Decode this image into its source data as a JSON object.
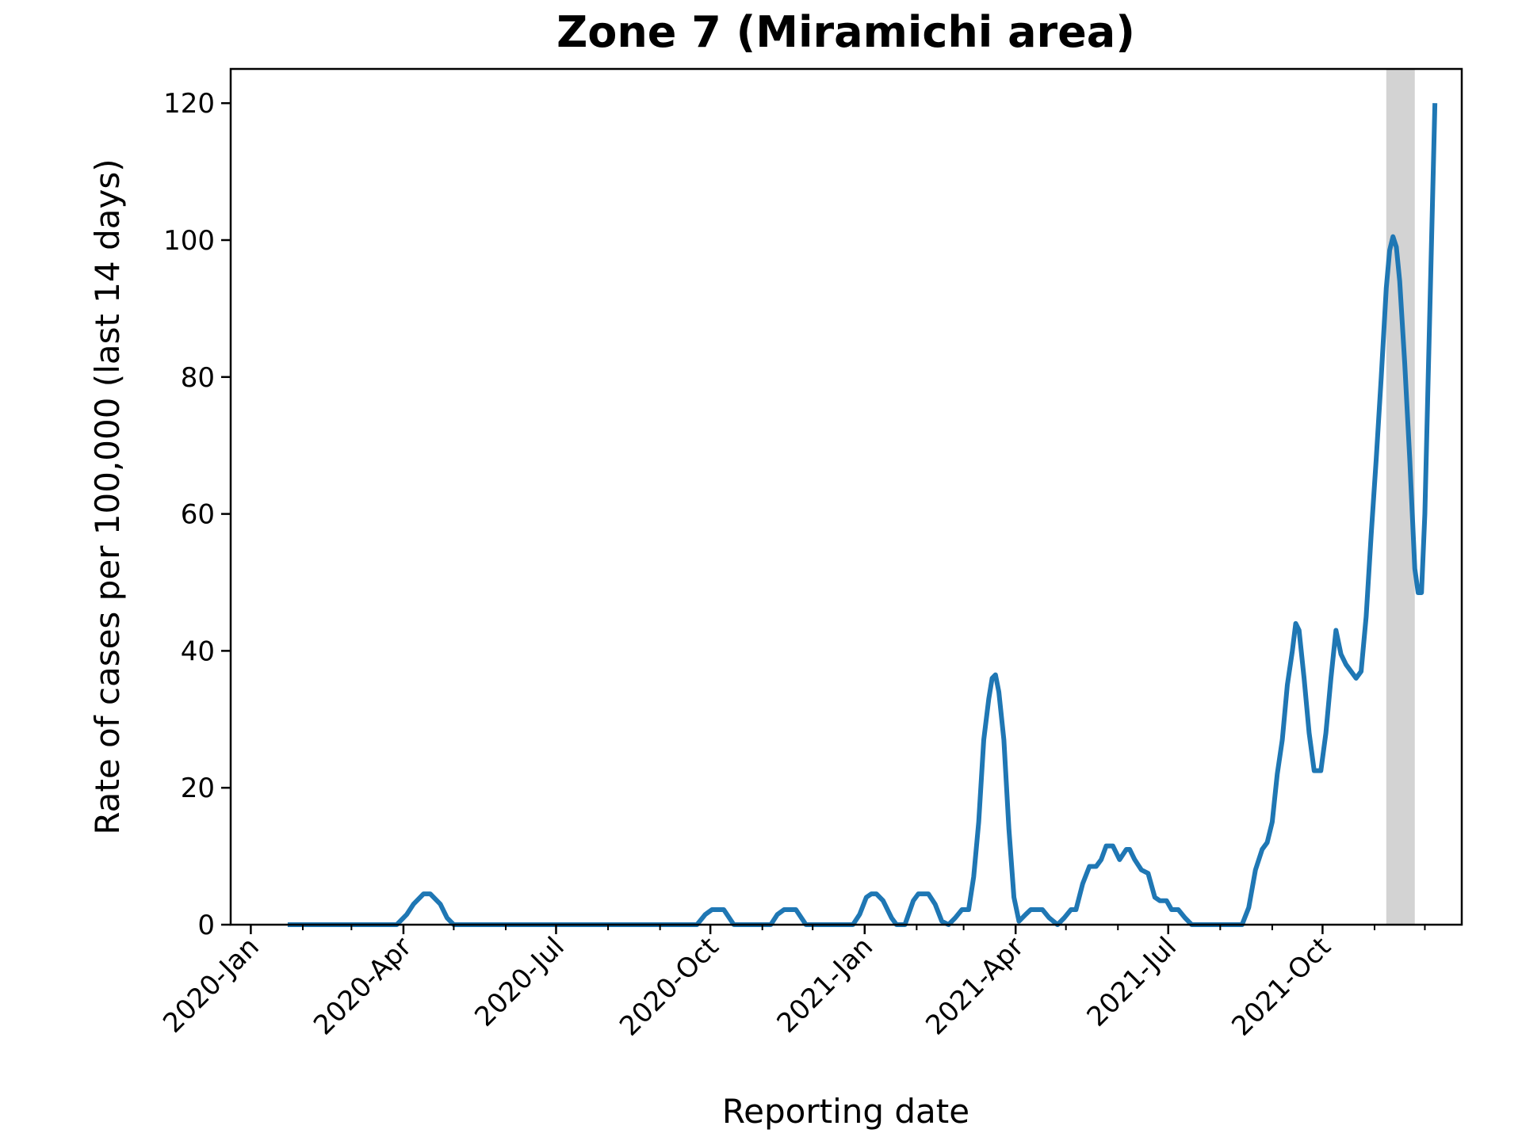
{
  "chart_data": {
    "type": "line",
    "title": "Zone 7 (Miramichi area)",
    "xlabel": "Reporting date",
    "ylabel": "Rate of cases per 100,000 (last 14 days)",
    "x_axis": {
      "type": "date",
      "range": [
        "2019-12-20",
        "2021-12-23"
      ],
      "ticks": [
        {
          "date": "2020-01-01",
          "label": "2020-Jan"
        },
        {
          "date": "2020-04-01",
          "label": "2020-Apr"
        },
        {
          "date": "2020-07-01",
          "label": "2020-Jul"
        },
        {
          "date": "2020-10-01",
          "label": "2020-Oct"
        },
        {
          "date": "2021-01-01",
          "label": "2021-Jan"
        },
        {
          "date": "2021-04-01",
          "label": "2021-Apr"
        },
        {
          "date": "2021-07-01",
          "label": "2021-Jul"
        },
        {
          "date": "2021-10-01",
          "label": "2021-Oct"
        }
      ],
      "minor_ticks": [
        "2020-02-01",
        "2020-03-01",
        "2020-05-01",
        "2020-06-01",
        "2020-08-01",
        "2020-09-01",
        "2020-11-01",
        "2020-12-01",
        "2021-02-01",
        "2021-03-01",
        "2021-05-01",
        "2021-06-01",
        "2021-08-01",
        "2021-09-01",
        "2021-11-01",
        "2021-12-01"
      ]
    },
    "y_axis": {
      "range": [
        0,
        125
      ],
      "ticks": [
        0,
        20,
        40,
        60,
        80,
        100,
        120
      ]
    },
    "grid": false,
    "highlight_band": {
      "from": "2021-11-08",
      "to": "2021-11-25",
      "color": "#d3d3d3"
    },
    "series": [
      {
        "color": "#1f77b4",
        "points": [
          [
            "2020-01-23",
            0
          ],
          [
            "2020-03-28",
            0
          ],
          [
            "2020-04-03",
            1.5
          ],
          [
            "2020-04-07",
            3
          ],
          [
            "2020-04-13",
            4.5
          ],
          [
            "2020-04-17",
            4.5
          ],
          [
            "2020-04-23",
            3
          ],
          [
            "2020-04-27",
            1
          ],
          [
            "2020-05-01",
            0
          ],
          [
            "2020-09-23",
            0
          ],
          [
            "2020-09-28",
            1.5
          ],
          [
            "2020-10-02",
            2.2
          ],
          [
            "2020-10-09",
            2.2
          ],
          [
            "2020-10-15",
            0
          ],
          [
            "2020-11-06",
            0
          ],
          [
            "2020-11-10",
            1.5
          ],
          [
            "2020-11-14",
            2.2
          ],
          [
            "2020-11-21",
            2.2
          ],
          [
            "2020-11-27",
            0
          ],
          [
            "2020-12-25",
            0
          ],
          [
            "2020-12-29",
            1.5
          ],
          [
            "2021-01-02",
            4
          ],
          [
            "2021-01-05",
            4.5
          ],
          [
            "2021-01-08",
            4.5
          ],
          [
            "2021-01-12",
            3.5
          ],
          [
            "2021-01-17",
            1
          ],
          [
            "2021-01-20",
            0
          ],
          [
            "2021-01-25",
            0
          ],
          [
            "2021-01-30",
            3.5
          ],
          [
            "2021-02-02",
            4.5
          ],
          [
            "2021-02-08",
            4.5
          ],
          [
            "2021-02-12",
            3
          ],
          [
            "2021-02-16",
            0.5
          ],
          [
            "2021-02-20",
            0
          ],
          [
            "2021-02-24",
            1
          ],
          [
            "2021-02-28",
            2.2
          ],
          [
            "2021-03-04",
            2.2
          ],
          [
            "2021-03-07",
            7
          ],
          [
            "2021-03-10",
            15
          ],
          [
            "2021-03-13",
            27
          ],
          [
            "2021-03-16",
            33
          ],
          [
            "2021-03-18",
            36
          ],
          [
            "2021-03-20",
            36.5
          ],
          [
            "2021-03-22",
            34
          ],
          [
            "2021-03-25",
            27
          ],
          [
            "2021-03-28",
            14
          ],
          [
            "2021-03-31",
            4
          ],
          [
            "2021-04-03",
            0.5
          ],
          [
            "2021-04-07",
            1.5
          ],
          [
            "2021-04-10",
            2.2
          ],
          [
            "2021-04-17",
            2.2
          ],
          [
            "2021-04-21",
            1
          ],
          [
            "2021-04-26",
            0
          ],
          [
            "2021-04-30",
            1
          ],
          [
            "2021-05-04",
            2.2
          ],
          [
            "2021-05-07",
            2.2
          ],
          [
            "2021-05-11",
            6
          ],
          [
            "2021-05-15",
            8.5
          ],
          [
            "2021-05-19",
            8.5
          ],
          [
            "2021-05-22",
            9.5
          ],
          [
            "2021-05-25",
            11.5
          ],
          [
            "2021-05-29",
            11.5
          ],
          [
            "2021-06-02",
            9.5
          ],
          [
            "2021-06-06",
            11
          ],
          [
            "2021-06-08",
            11
          ],
          [
            "2021-06-11",
            9.5
          ],
          [
            "2021-06-15",
            8
          ],
          [
            "2021-06-19",
            7.5
          ],
          [
            "2021-06-23",
            4
          ],
          [
            "2021-06-26",
            3.5
          ],
          [
            "2021-06-30",
            3.5
          ],
          [
            "2021-07-03",
            2.2
          ],
          [
            "2021-07-07",
            2.2
          ],
          [
            "2021-07-11",
            1
          ],
          [
            "2021-07-15",
            0
          ],
          [
            "2021-08-14",
            0
          ],
          [
            "2021-08-18",
            2.5
          ],
          [
            "2021-08-22",
            8
          ],
          [
            "2021-08-26",
            11
          ],
          [
            "2021-08-29",
            12
          ],
          [
            "2021-09-01",
            15
          ],
          [
            "2021-09-04",
            22
          ],
          [
            "2021-09-07",
            27
          ],
          [
            "2021-09-10",
            35
          ],
          [
            "2021-09-13",
            40
          ],
          [
            "2021-09-15",
            44
          ],
          [
            "2021-09-17",
            43
          ],
          [
            "2021-09-20",
            36
          ],
          [
            "2021-09-23",
            28
          ],
          [
            "2021-09-26",
            22.5
          ],
          [
            "2021-09-30",
            22.5
          ],
          [
            "2021-10-03",
            28
          ],
          [
            "2021-10-06",
            36
          ],
          [
            "2021-10-09",
            43
          ],
          [
            "2021-10-12",
            39.5
          ],
          [
            "2021-10-15",
            38
          ],
          [
            "2021-10-18",
            37
          ],
          [
            "2021-10-21",
            36
          ],
          [
            "2021-10-24",
            37
          ],
          [
            "2021-10-27",
            45
          ],
          [
            "2021-10-30",
            57
          ],
          [
            "2021-11-02",
            68
          ],
          [
            "2021-11-05",
            80
          ],
          [
            "2021-11-08",
            93
          ],
          [
            "2021-11-10",
            98.5
          ],
          [
            "2021-11-12",
            100.5
          ],
          [
            "2021-11-14",
            99
          ],
          [
            "2021-11-16",
            94
          ],
          [
            "2021-11-19",
            82
          ],
          [
            "2021-11-22",
            68
          ],
          [
            "2021-11-25",
            52
          ],
          [
            "2021-11-27",
            48.5
          ],
          [
            "2021-11-29",
            48.5
          ],
          [
            "2021-12-01",
            60
          ],
          [
            "2021-12-03",
            80
          ],
          [
            "2021-12-05",
            100
          ],
          [
            "2021-12-07",
            120
          ]
        ]
      }
    ]
  }
}
